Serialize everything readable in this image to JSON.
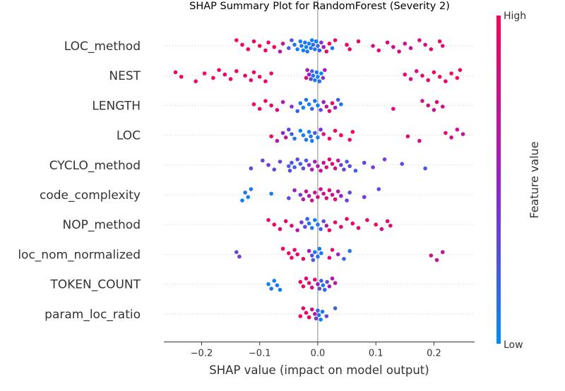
{
  "chart_data": {
    "type": "scatter",
    "title": "SHAP Summary Plot for RandomForest (Severity 2)",
    "xlabel": "SHAP value (impact on model output)",
    "xlim": [
      -0.265,
      0.27
    ],
    "x_ticks": [
      -0.2,
      -0.1,
      0.0,
      0.1,
      0.2
    ],
    "x_tick_labels": [
      "−0.2",
      "−0.1",
      "0.0",
      "0.1",
      "0.2"
    ],
    "features": [
      "LOC_method",
      "NEST",
      "LENGTH",
      "LOC",
      "CYCLO_method",
      "code_complexity",
      "NOP_method",
      "loc_nom_normalized",
      "TOKEN_COUNT",
      "param_loc_ratio"
    ],
    "colorbar": {
      "label": "Feature value",
      "high_label": "High",
      "low_label": "Low",
      "high_color": "#ff0052",
      "mid_color": "#9a1fc7",
      "low_color": "#008bfb"
    },
    "zero_line": true,
    "grid": false,
    "points": [
      [
        [
          -0.14,
          0.95
        ],
        [
          -0.13,
          0.9
        ],
        [
          -0.12,
          0.95
        ],
        [
          -0.11,
          0.9
        ],
        [
          -0.1,
          0.95
        ],
        [
          -0.09,
          0.9
        ],
        [
          -0.085,
          0.92
        ],
        [
          -0.075,
          0.95
        ],
        [
          -0.065,
          0.6
        ],
        [
          -0.06,
          0.7
        ],
        [
          -0.05,
          0.2
        ],
        [
          -0.045,
          0.25
        ],
        [
          -0.04,
          0.1
        ],
        [
          -0.035,
          0.05
        ],
        [
          -0.03,
          0.05
        ],
        [
          -0.028,
          0.1
        ],
        [
          -0.025,
          0.05
        ],
        [
          -0.022,
          0.1
        ],
        [
          -0.02,
          0.05
        ],
        [
          -0.018,
          0.1
        ],
        [
          -0.015,
          0.05
        ],
        [
          -0.012,
          0.1
        ],
        [
          -0.01,
          0.05
        ],
        [
          -0.008,
          0.2
        ],
        [
          -0.005,
          0.1
        ],
        [
          -0.003,
          0.05
        ],
        [
          0.0,
          0.15
        ],
        [
          0.003,
          0.2
        ],
        [
          0.006,
          0.4
        ],
        [
          0.01,
          0.5
        ],
        [
          0.015,
          0.9
        ],
        [
          0.02,
          0.95
        ],
        [
          0.025,
          0.1
        ],
        [
          0.03,
          0.95
        ],
        [
          0.05,
          0.95
        ],
        [
          0.055,
          0.9
        ],
        [
          0.07,
          0.9
        ],
        [
          0.095,
          0.8
        ],
        [
          0.105,
          0.85
        ],
        [
          0.12,
          0.8
        ],
        [
          0.13,
          0.75
        ],
        [
          0.14,
          0.8
        ],
        [
          0.15,
          0.75
        ],
        [
          0.16,
          0.7
        ],
        [
          0.175,
          0.85
        ],
        [
          0.185,
          0.8
        ],
        [
          0.195,
          0.9
        ],
        [
          0.21,
          0.95
        ],
        [
          0.215,
          0.85
        ]
      ],
      [
        [
          -0.245,
          0.95
        ],
        [
          -0.235,
          0.95
        ],
        [
          -0.21,
          0.92
        ],
        [
          -0.195,
          0.95
        ],
        [
          -0.18,
          0.95
        ],
        [
          -0.17,
          0.92
        ],
        [
          -0.16,
          0.9
        ],
        [
          -0.15,
          0.95
        ],
        [
          -0.14,
          0.92
        ],
        [
          -0.125,
          0.9
        ],
        [
          -0.115,
          0.88
        ],
        [
          -0.11,
          0.95
        ],
        [
          -0.1,
          0.9
        ],
        [
          -0.09,
          0.88
        ],
        [
          -0.08,
          0.92
        ],
        [
          -0.02,
          0.8
        ],
        [
          -0.018,
          0.6
        ],
        [
          -0.015,
          0.5
        ],
        [
          -0.012,
          0.3
        ],
        [
          -0.01,
          0.2
        ],
        [
          -0.008,
          0.1
        ],
        [
          -0.005,
          0.05
        ],
        [
          -0.002,
          0.1
        ],
        [
          0.0,
          0.05
        ],
        [
          0.003,
          0.1
        ],
        [
          0.006,
          0.05
        ],
        [
          0.009,
          0.4
        ],
        [
          0.012,
          0.6
        ],
        [
          0.15,
          0.92
        ],
        [
          0.16,
          0.75
        ],
        [
          0.17,
          0.8
        ],
        [
          0.18,
          0.85
        ],
        [
          0.19,
          0.9
        ],
        [
          0.2,
          0.92
        ],
        [
          0.21,
          0.95
        ],
        [
          0.22,
          0.9
        ],
        [
          0.23,
          0.95
        ],
        [
          0.24,
          0.93
        ],
        [
          0.245,
          0.95
        ]
      ],
      [
        [
          -0.11,
          0.95
        ],
        [
          -0.1,
          0.9
        ],
        [
          -0.09,
          0.95
        ],
        [
          -0.08,
          0.92
        ],
        [
          -0.07,
          0.85
        ],
        [
          -0.06,
          0.6
        ],
        [
          -0.045,
          0.4
        ],
        [
          -0.035,
          0.2
        ],
        [
          -0.03,
          0.1
        ],
        [
          -0.025,
          0.05
        ],
        [
          -0.02,
          0.1
        ],
        [
          -0.015,
          0.05
        ],
        [
          -0.01,
          0.2
        ],
        [
          -0.005,
          0.1
        ],
        [
          0.0,
          0.05
        ],
        [
          0.005,
          0.3
        ],
        [
          0.01,
          0.5
        ],
        [
          0.015,
          0.7
        ],
        [
          0.02,
          0.85
        ],
        [
          0.025,
          0.9
        ],
        [
          0.03,
          0.5
        ],
        [
          0.035,
          0.2
        ],
        [
          0.04,
          0.1
        ],
        [
          0.13,
          0.85
        ],
        [
          0.18,
          0.75
        ],
        [
          0.19,
          0.8
        ],
        [
          0.2,
          0.7
        ],
        [
          0.205,
          0.85
        ],
        [
          0.215,
          0.8
        ]
      ],
      [
        [
          -0.08,
          0.95
        ],
        [
          -0.07,
          0.6
        ],
        [
          -0.06,
          0.5
        ],
        [
          -0.055,
          0.7
        ],
        [
          -0.05,
          0.3
        ],
        [
          -0.045,
          0.2
        ],
        [
          -0.04,
          0.1
        ],
        [
          -0.03,
          0.05
        ],
        [
          -0.025,
          0.05
        ],
        [
          -0.02,
          0.1
        ],
        [
          -0.015,
          0.05
        ],
        [
          -0.012,
          0.1
        ],
        [
          -0.01,
          0.05
        ],
        [
          -0.005,
          0.2
        ],
        [
          0.0,
          0.1
        ],
        [
          0.005,
          0.4
        ],
        [
          0.01,
          0.8
        ],
        [
          0.02,
          0.9
        ],
        [
          0.03,
          0.95
        ],
        [
          0.04,
          0.95
        ],
        [
          0.055,
          0.9
        ],
        [
          0.06,
          0.95
        ],
        [
          0.155,
          0.85
        ],
        [
          0.175,
          0.8
        ],
        [
          0.22,
          0.9
        ],
        [
          0.23,
          0.8
        ],
        [
          0.24,
          0.75
        ],
        [
          0.25,
          0.7
        ]
      ],
      [
        [
          -0.115,
          0.3
        ],
        [
          -0.095,
          0.35
        ],
        [
          -0.085,
          0.4
        ],
        [
          -0.075,
          0.3
        ],
        [
          -0.065,
          0.35
        ],
        [
          -0.05,
          0.2
        ],
        [
          -0.048,
          0.3
        ],
        [
          -0.045,
          0.25
        ],
        [
          -0.04,
          0.2
        ],
        [
          -0.035,
          0.3
        ],
        [
          -0.03,
          0.2
        ],
        [
          -0.025,
          0.3
        ],
        [
          -0.02,
          0.25
        ],
        [
          -0.015,
          0.5
        ],
        [
          -0.01,
          0.6
        ],
        [
          -0.005,
          0.55
        ],
        [
          0.0,
          0.65
        ],
        [
          0.005,
          0.7
        ],
        [
          0.01,
          0.75
        ],
        [
          0.015,
          0.8
        ],
        [
          0.02,
          0.85
        ],
        [
          0.025,
          0.9
        ],
        [
          0.03,
          0.8
        ],
        [
          0.035,
          0.7
        ],
        [
          0.04,
          0.35
        ],
        [
          0.045,
          0.3
        ],
        [
          0.05,
          0.25
        ],
        [
          0.055,
          0.3
        ],
        [
          0.065,
          0.2
        ],
        [
          0.08,
          0.3
        ],
        [
          0.095,
          0.4
        ],
        [
          0.115,
          0.35
        ],
        [
          0.145,
          0.3
        ],
        [
          0.185,
          0.25
        ]
      ],
      [
        [
          -0.13,
          0.05
        ],
        [
          -0.125,
          0.1
        ],
        [
          -0.12,
          0.05
        ],
        [
          -0.115,
          0.1
        ],
        [
          -0.08,
          0.05
        ],
        [
          -0.05,
          0.3
        ],
        [
          -0.04,
          0.5
        ],
        [
          -0.03,
          0.4
        ],
        [
          -0.025,
          0.6
        ],
        [
          -0.02,
          0.7
        ],
        [
          -0.015,
          0.65
        ],
        [
          -0.01,
          0.75
        ],
        [
          -0.005,
          0.7
        ],
        [
          0.0,
          0.8
        ],
        [
          0.005,
          0.7
        ],
        [
          0.01,
          0.75
        ],
        [
          0.015,
          0.8
        ],
        [
          0.02,
          0.85
        ],
        [
          0.025,
          0.75
        ],
        [
          0.03,
          0.9
        ],
        [
          0.035,
          0.65
        ],
        [
          0.04,
          0.5
        ],
        [
          0.05,
          0.35
        ],
        [
          0.055,
          0.3
        ],
        [
          0.08,
          0.4
        ],
        [
          0.105,
          0.3
        ]
      ],
      [
        [
          -0.085,
          0.9
        ],
        [
          -0.075,
          0.95
        ],
        [
          -0.065,
          0.92
        ],
        [
          -0.055,
          0.9
        ],
        [
          -0.045,
          0.85
        ],
        [
          -0.035,
          0.6
        ],
        [
          -0.028,
          0.4
        ],
        [
          -0.022,
          0.3
        ],
        [
          -0.018,
          0.2
        ],
        [
          -0.015,
          0.1
        ],
        [
          -0.01,
          0.1
        ],
        [
          -0.005,
          0.05
        ],
        [
          0.0,
          0.1
        ],
        [
          0.005,
          0.2
        ],
        [
          0.01,
          0.3
        ],
        [
          0.015,
          0.6
        ],
        [
          0.02,
          0.9
        ],
        [
          0.03,
          0.95
        ],
        [
          0.04,
          0.9
        ],
        [
          0.05,
          0.92
        ],
        [
          0.06,
          0.9
        ],
        [
          0.07,
          0.85
        ],
        [
          0.085,
          0.9
        ],
        [
          0.1,
          0.95
        ],
        [
          0.11,
          0.75
        ],
        [
          0.12,
          0.9
        ],
        [
          0.125,
          0.85
        ]
      ],
      [
        [
          -0.14,
          0.3
        ],
        [
          -0.135,
          0.35
        ],
        [
          -0.06,
          0.95
        ],
        [
          -0.05,
          0.9
        ],
        [
          -0.045,
          0.95
        ],
        [
          -0.04,
          0.92
        ],
        [
          -0.035,
          0.88
        ],
        [
          -0.025,
          0.9
        ],
        [
          -0.015,
          0.6
        ],
        [
          -0.01,
          0.3
        ],
        [
          -0.008,
          0.2
        ],
        [
          -0.005,
          0.1
        ],
        [
          0.0,
          0.1
        ],
        [
          0.003,
          0.05
        ],
        [
          0.006,
          0.1
        ],
        [
          0.02,
          0.85
        ],
        [
          0.025,
          0.9
        ],
        [
          0.035,
          0.5
        ],
        [
          0.045,
          0.2
        ],
        [
          0.055,
          0.1
        ],
        [
          0.195,
          0.8
        ],
        [
          0.205,
          0.75
        ],
        [
          0.215,
          0.7
        ]
      ],
      [
        [
          -0.085,
          0.05
        ],
        [
          -0.08,
          0.1
        ],
        [
          -0.075,
          0.05
        ],
        [
          -0.07,
          0.1
        ],
        [
          -0.065,
          0.05
        ],
        [
          -0.03,
          0.95
        ],
        [
          -0.025,
          0.9
        ],
        [
          -0.02,
          0.8
        ],
        [
          -0.015,
          0.92
        ],
        [
          -0.01,
          0.85
        ],
        [
          -0.005,
          0.9
        ],
        [
          0.0,
          0.5
        ],
        [
          0.003,
          0.3
        ],
        [
          0.006,
          0.2
        ],
        [
          0.009,
          0.1
        ],
        [
          0.012,
          0.15
        ],
        [
          0.016,
          0.3
        ],
        [
          0.02,
          0.5
        ],
        [
          0.025,
          0.6
        ],
        [
          0.03,
          0.7
        ]
      ],
      [
        [
          -0.03,
          0.95
        ],
        [
          -0.025,
          0.9
        ],
        [
          -0.02,
          0.92
        ],
        [
          -0.015,
          0.95
        ],
        [
          -0.01,
          0.8
        ],
        [
          -0.005,
          0.6
        ],
        [
          -0.003,
          0.4
        ],
        [
          0.0,
          0.2
        ],
        [
          0.002,
          0.1
        ],
        [
          0.005,
          0.05
        ],
        [
          0.008,
          0.1
        ],
        [
          0.015,
          0.3
        ],
        [
          0.03,
          0.2
        ]
      ]
    ]
  }
}
